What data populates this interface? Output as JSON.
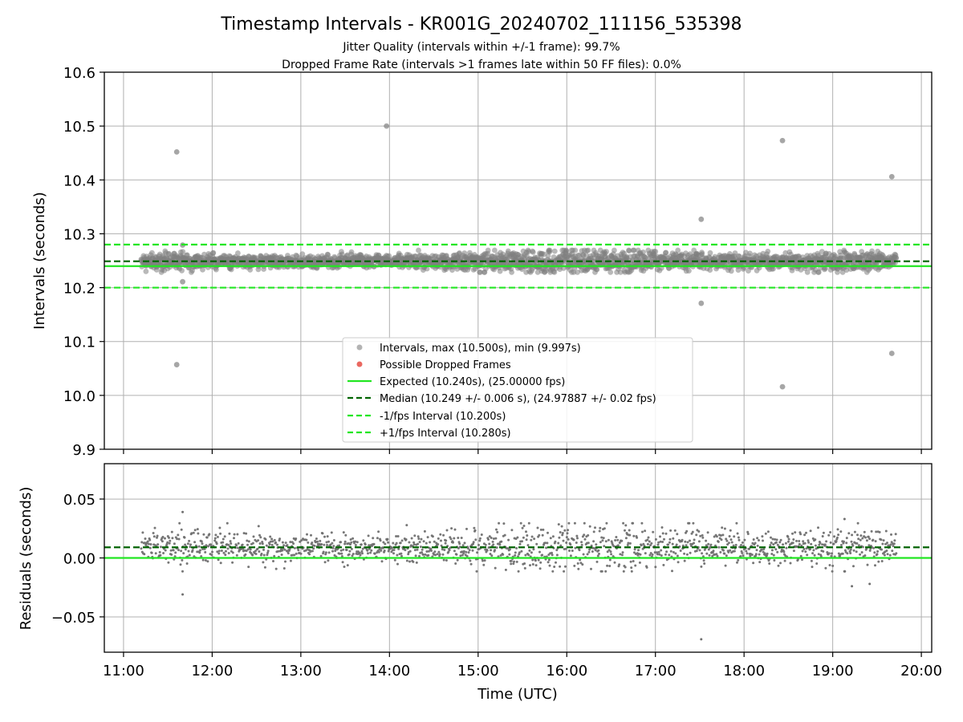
{
  "chart_data": [
    {
      "type": "scatter",
      "title": "Timestamp Intervals - KR001G_20240702_111156_535398",
      "subtitle_lines": [
        "Jitter Quality (intervals within +/-1 frame): 99.7%",
        "Dropped Frame Rate (intervals >1 frames late within 50 FF files): 0.0%"
      ],
      "xlabel": "",
      "ylabel": "Intervals (seconds)",
      "xlim": [
        "10:47",
        "20:07"
      ],
      "ylim": [
        9.9,
        10.6
      ],
      "x_ticks": [
        "11:00",
        "12:00",
        "13:00",
        "14:00",
        "15:00",
        "16:00",
        "17:00",
        "18:00",
        "19:00",
        "20:00"
      ],
      "y_ticks": [
        9.9,
        10.0,
        10.1,
        10.2,
        10.3,
        10.4,
        10.5,
        10.6
      ],
      "y_tick_labels": [
        "9.9",
        "10.0",
        "10.1",
        "10.2",
        "10.3",
        "10.4",
        "10.5",
        "10.6"
      ],
      "grid": true,
      "legend_position": "lower-center",
      "series": [
        {
          "name": "Intervals, max (10.500s), min (9.997s)",
          "kind": "points",
          "color": "#808080",
          "band": {
            "x_start": "11:12",
            "x_end": "19:43",
            "center": 10.249,
            "spread": 0.006
          },
          "outliers": [
            {
              "x": "11:36",
              "y": 10.452
            },
            {
              "x": "11:40",
              "y": 10.279
            },
            {
              "x": "11:40",
              "y": 10.211
            },
            {
              "x": "11:36",
              "y": 10.057
            },
            {
              "x": "13:58",
              "y": 10.5
            },
            {
              "x": "17:31",
              "y": 10.327
            },
            {
              "x": "17:31",
              "y": 10.171
            },
            {
              "x": "18:26",
              "y": 10.473
            },
            {
              "x": "18:26",
              "y": 10.016
            },
            {
              "x": "19:40",
              "y": 10.406
            },
            {
              "x": "19:40",
              "y": 10.078
            }
          ]
        },
        {
          "name": "Possible Dropped Frames",
          "kind": "points",
          "color": "#e8584f",
          "values": []
        },
        {
          "name": "Expected (10.240s), (25.00000 fps)",
          "kind": "hline",
          "y": 10.24,
          "color": "#22e622",
          "style": "solid"
        },
        {
          "name": "Median (10.249 +/- 0.006 s), (24.97887 +/- 0.02 fps)",
          "kind": "hline",
          "y": 10.249,
          "color": "#006400",
          "style": "dashed"
        },
        {
          "name": "-1/fps Interval (10.200s)",
          "kind": "hline",
          "y": 10.2,
          "color": "#22e622",
          "style": "dashed"
        },
        {
          "name": "+1/fps Interval (10.280s)",
          "kind": "hline",
          "y": 10.28,
          "color": "#22e622",
          "style": "dashed"
        }
      ]
    },
    {
      "type": "scatter",
      "title": "",
      "xlabel": "Time (UTC)",
      "ylabel": "Residuals (seconds)",
      "xlim": [
        "10:47",
        "20:07"
      ],
      "ylim": [
        -0.08,
        0.08
      ],
      "x_ticks": [
        "11:00",
        "12:00",
        "13:00",
        "14:00",
        "15:00",
        "16:00",
        "17:00",
        "18:00",
        "19:00",
        "20:00"
      ],
      "x_tick_labels": [
        "11:00",
        "12:00",
        "13:00",
        "14:00",
        "15:00",
        "16:00",
        "17:00",
        "18:00",
        "19:00",
        "20:00"
      ],
      "y_ticks": [
        -0.05,
        0.0,
        0.05
      ],
      "y_tick_labels": [
        "−0.05",
        "0.00",
        "0.05"
      ],
      "grid": true,
      "series": [
        {
          "kind": "points",
          "color": "#707070",
          "band": {
            "x_start": "11:12",
            "x_end": "19:43",
            "center": 0.009,
            "spread": 0.006
          },
          "outliers": [
            {
              "x": "11:40",
              "y": 0.039
            },
            {
              "x": "11:40",
              "y": -0.031
            },
            {
              "x": "17:31",
              "y": -0.069
            },
            {
              "x": "19:08",
              "y": 0.033
            },
            {
              "x": "19:25",
              "y": -0.022
            },
            {
              "x": "19:13",
              "y": -0.024
            }
          ]
        },
        {
          "kind": "hline",
          "y": 0.0,
          "color": "#22e622",
          "style": "solid"
        },
        {
          "kind": "hline",
          "y": 0.009,
          "color": "#006400",
          "style": "dashed"
        }
      ]
    }
  ]
}
